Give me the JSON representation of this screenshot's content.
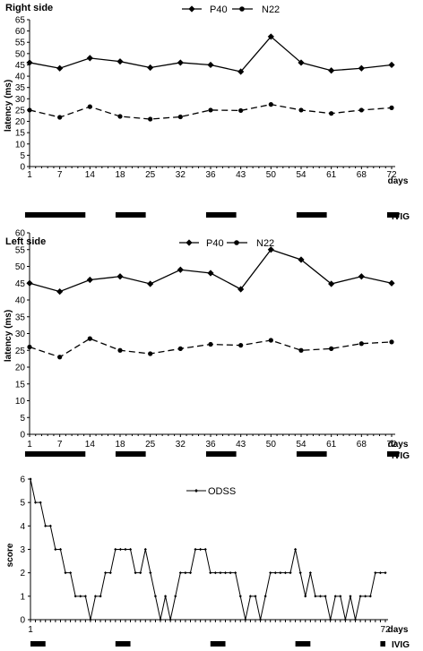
{
  "chart_data": [
    {
      "type": "line",
      "title": "Right side",
      "xlabel": "days",
      "ylabel": "latency (ms)",
      "ylim": [
        0,
        65
      ],
      "yticks": [
        0,
        5,
        10,
        15,
        20,
        25,
        30,
        35,
        40,
        45,
        50,
        55,
        60,
        65
      ],
      "categories": [
        "1",
        "7",
        "14",
        "18",
        "25",
        "32",
        "36",
        "43",
        "50",
        "54",
        "61",
        "68",
        "72"
      ],
      "legend_position": "top-center",
      "series": [
        {
          "name": "P40",
          "style": "solid",
          "marker": "diamond",
          "values": [
            46,
            43.5,
            48,
            46.5,
            43.8,
            46,
            45,
            42,
            57.5,
            46,
            42.5,
            43.5,
            45
          ]
        },
        {
          "name": "N22",
          "style": "dashed",
          "marker": "circle",
          "values": [
            25,
            21.8,
            26.5,
            22.2,
            21,
            22,
            25,
            24.8,
            27.5,
            25,
            23.5,
            25,
            26
          ]
        }
      ],
      "ivig_label": "IVIG",
      "ivig_bars": [
        [
          1,
          3
        ],
        [
          4,
          5
        ],
        [
          7,
          8
        ],
        [
          10,
          11
        ],
        [
          13,
          13.4
        ]
      ]
    },
    {
      "type": "line",
      "title": "Left side",
      "xlabel": "days",
      "ylabel": "latency (ms)",
      "ylim": [
        0,
        60
      ],
      "yticks": [
        0,
        5,
        10,
        15,
        20,
        25,
        30,
        35,
        40,
        45,
        50,
        55,
        60
      ],
      "categories": [
        "1",
        "7",
        "14",
        "18",
        "25",
        "32",
        "36",
        "43",
        "50",
        "54",
        "61",
        "68",
        "72"
      ],
      "legend_position": "top-center",
      "series": [
        {
          "name": "P40",
          "style": "solid",
          "marker": "diamond",
          "values": [
            45,
            42.5,
            46,
            47,
            44.8,
            49,
            48,
            43.2,
            55,
            52,
            44.8,
            47,
            45
          ]
        },
        {
          "name": "N22",
          "style": "dashed",
          "marker": "circle",
          "values": [
            26,
            23,
            28.5,
            25,
            24,
            25.5,
            26.8,
            26.5,
            28,
            25,
            25.5,
            27,
            27.5
          ]
        }
      ],
      "ivig_label": "IVIG",
      "ivig_bars": [
        [
          1,
          3
        ],
        [
          4,
          5
        ],
        [
          7,
          8
        ],
        [
          10,
          11
        ],
        [
          13,
          13.4
        ]
      ]
    },
    {
      "type": "line",
      "xlabel": "days",
      "ylabel": "score",
      "ylim": [
        0,
        6
      ],
      "yticks": [
        0,
        1,
        2,
        3,
        4,
        5,
        6
      ],
      "x_range": [
        1,
        72
      ],
      "xtick_labels": [
        "1",
        "72"
      ],
      "legend_position": "top-center",
      "series": [
        {
          "name": "ODSS",
          "style": "solid",
          "marker": "small-diamond",
          "x": [
            1,
            2,
            3,
            4,
            5,
            6,
            7,
            8,
            9,
            10,
            11,
            12,
            13,
            14,
            15,
            16,
            17,
            18,
            19,
            20,
            21,
            22,
            23,
            24,
            25,
            26,
            27,
            28,
            29,
            30,
            31,
            32,
            33,
            34,
            35,
            36,
            37,
            38,
            39,
            40,
            41,
            42,
            43,
            44,
            45,
            46,
            47,
            48,
            49,
            50,
            51,
            52,
            53,
            54,
            55,
            56,
            57,
            58,
            59,
            60,
            61,
            62,
            63,
            64,
            65,
            66,
            67,
            68,
            69,
            70,
            71,
            72
          ],
          "values": [
            6,
            5,
            5,
            4,
            4,
            3,
            3,
            2,
            2,
            1,
            1,
            1,
            0,
            1,
            1,
            2,
            2,
            3,
            3,
            3,
            3,
            2,
            2,
            3,
            2,
            1,
            0,
            1,
            0,
            1,
            2,
            2,
            2,
            3,
            3,
            3,
            2,
            2,
            2,
            2,
            2,
            2,
            1,
            0,
            1,
            1,
            0,
            1,
            2,
            2,
            2,
            2,
            2,
            3,
            2,
            1,
            2,
            1,
            1,
            1,
            0,
            1,
            1,
            0,
            1,
            0,
            1,
            1,
            1,
            2,
            2,
            2
          ]
        }
      ],
      "ivig_label": "IVIG",
      "ivig_bars": [
        [
          1,
          4
        ],
        [
          18,
          21
        ],
        [
          37,
          40
        ],
        [
          54,
          57
        ],
        [
          71,
          72
        ]
      ]
    }
  ]
}
